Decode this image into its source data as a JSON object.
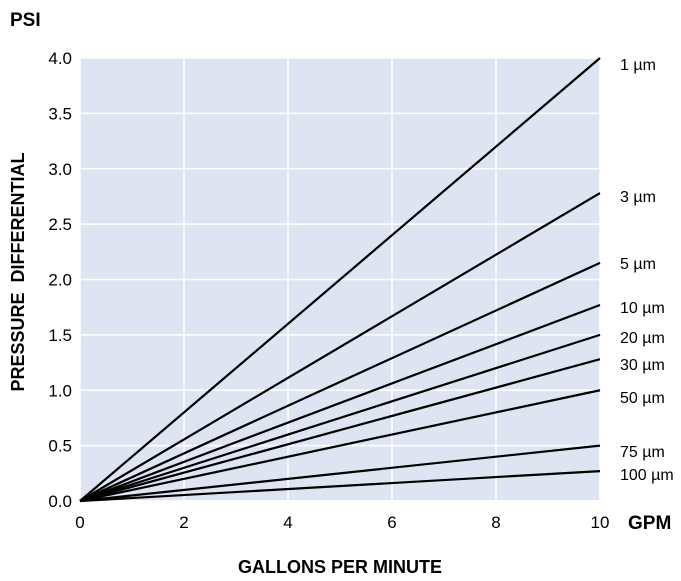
{
  "chart_data": {
    "type": "line",
    "title": "",
    "xlabel": "GALLONS PER MINUTE",
    "ylabel": "PRESSURE  DIFFERENTIAL",
    "x_unit": "GPM",
    "y_unit": "PSI",
    "xlim": [
      0,
      10
    ],
    "ylim": [
      0,
      4.0
    ],
    "x_ticks": [
      "0",
      "2",
      "4",
      "6",
      "8",
      "10"
    ],
    "y_ticks": [
      "0.0",
      "0.5",
      "1.0",
      "1.5",
      "2.0",
      "2.5",
      "3.0",
      "3.5",
      "4.0"
    ],
    "grid": true,
    "plot_background": "#dfe4f2",
    "line_color": "#000000",
    "series": [
      {
        "name": "1 µm",
        "x": [
          0,
          10
        ],
        "y": [
          0,
          4.0
        ]
      },
      {
        "name": "3 µm",
        "x": [
          0,
          10
        ],
        "y": [
          0,
          2.78
        ]
      },
      {
        "name": "5 µm",
        "x": [
          0,
          10
        ],
        "y": [
          0,
          2.15
        ]
      },
      {
        "name": "10 µm",
        "x": [
          0,
          10
        ],
        "y": [
          0,
          1.77
        ]
      },
      {
        "name": "20 µm",
        "x": [
          0,
          10
        ],
        "y": [
          0,
          1.5
        ]
      },
      {
        "name": "30 µm",
        "x": [
          0,
          10
        ],
        "y": [
          0,
          1.28
        ]
      },
      {
        "name": "50 µm",
        "x": [
          0,
          10
        ],
        "y": [
          0,
          1.0
        ]
      },
      {
        "name": "75 µm",
        "x": [
          0,
          10
        ],
        "y": [
          0,
          0.5
        ]
      },
      {
        "name": "100 µm",
        "x": [
          0,
          10
        ],
        "y": [
          0,
          0.27
        ]
      }
    ]
  }
}
